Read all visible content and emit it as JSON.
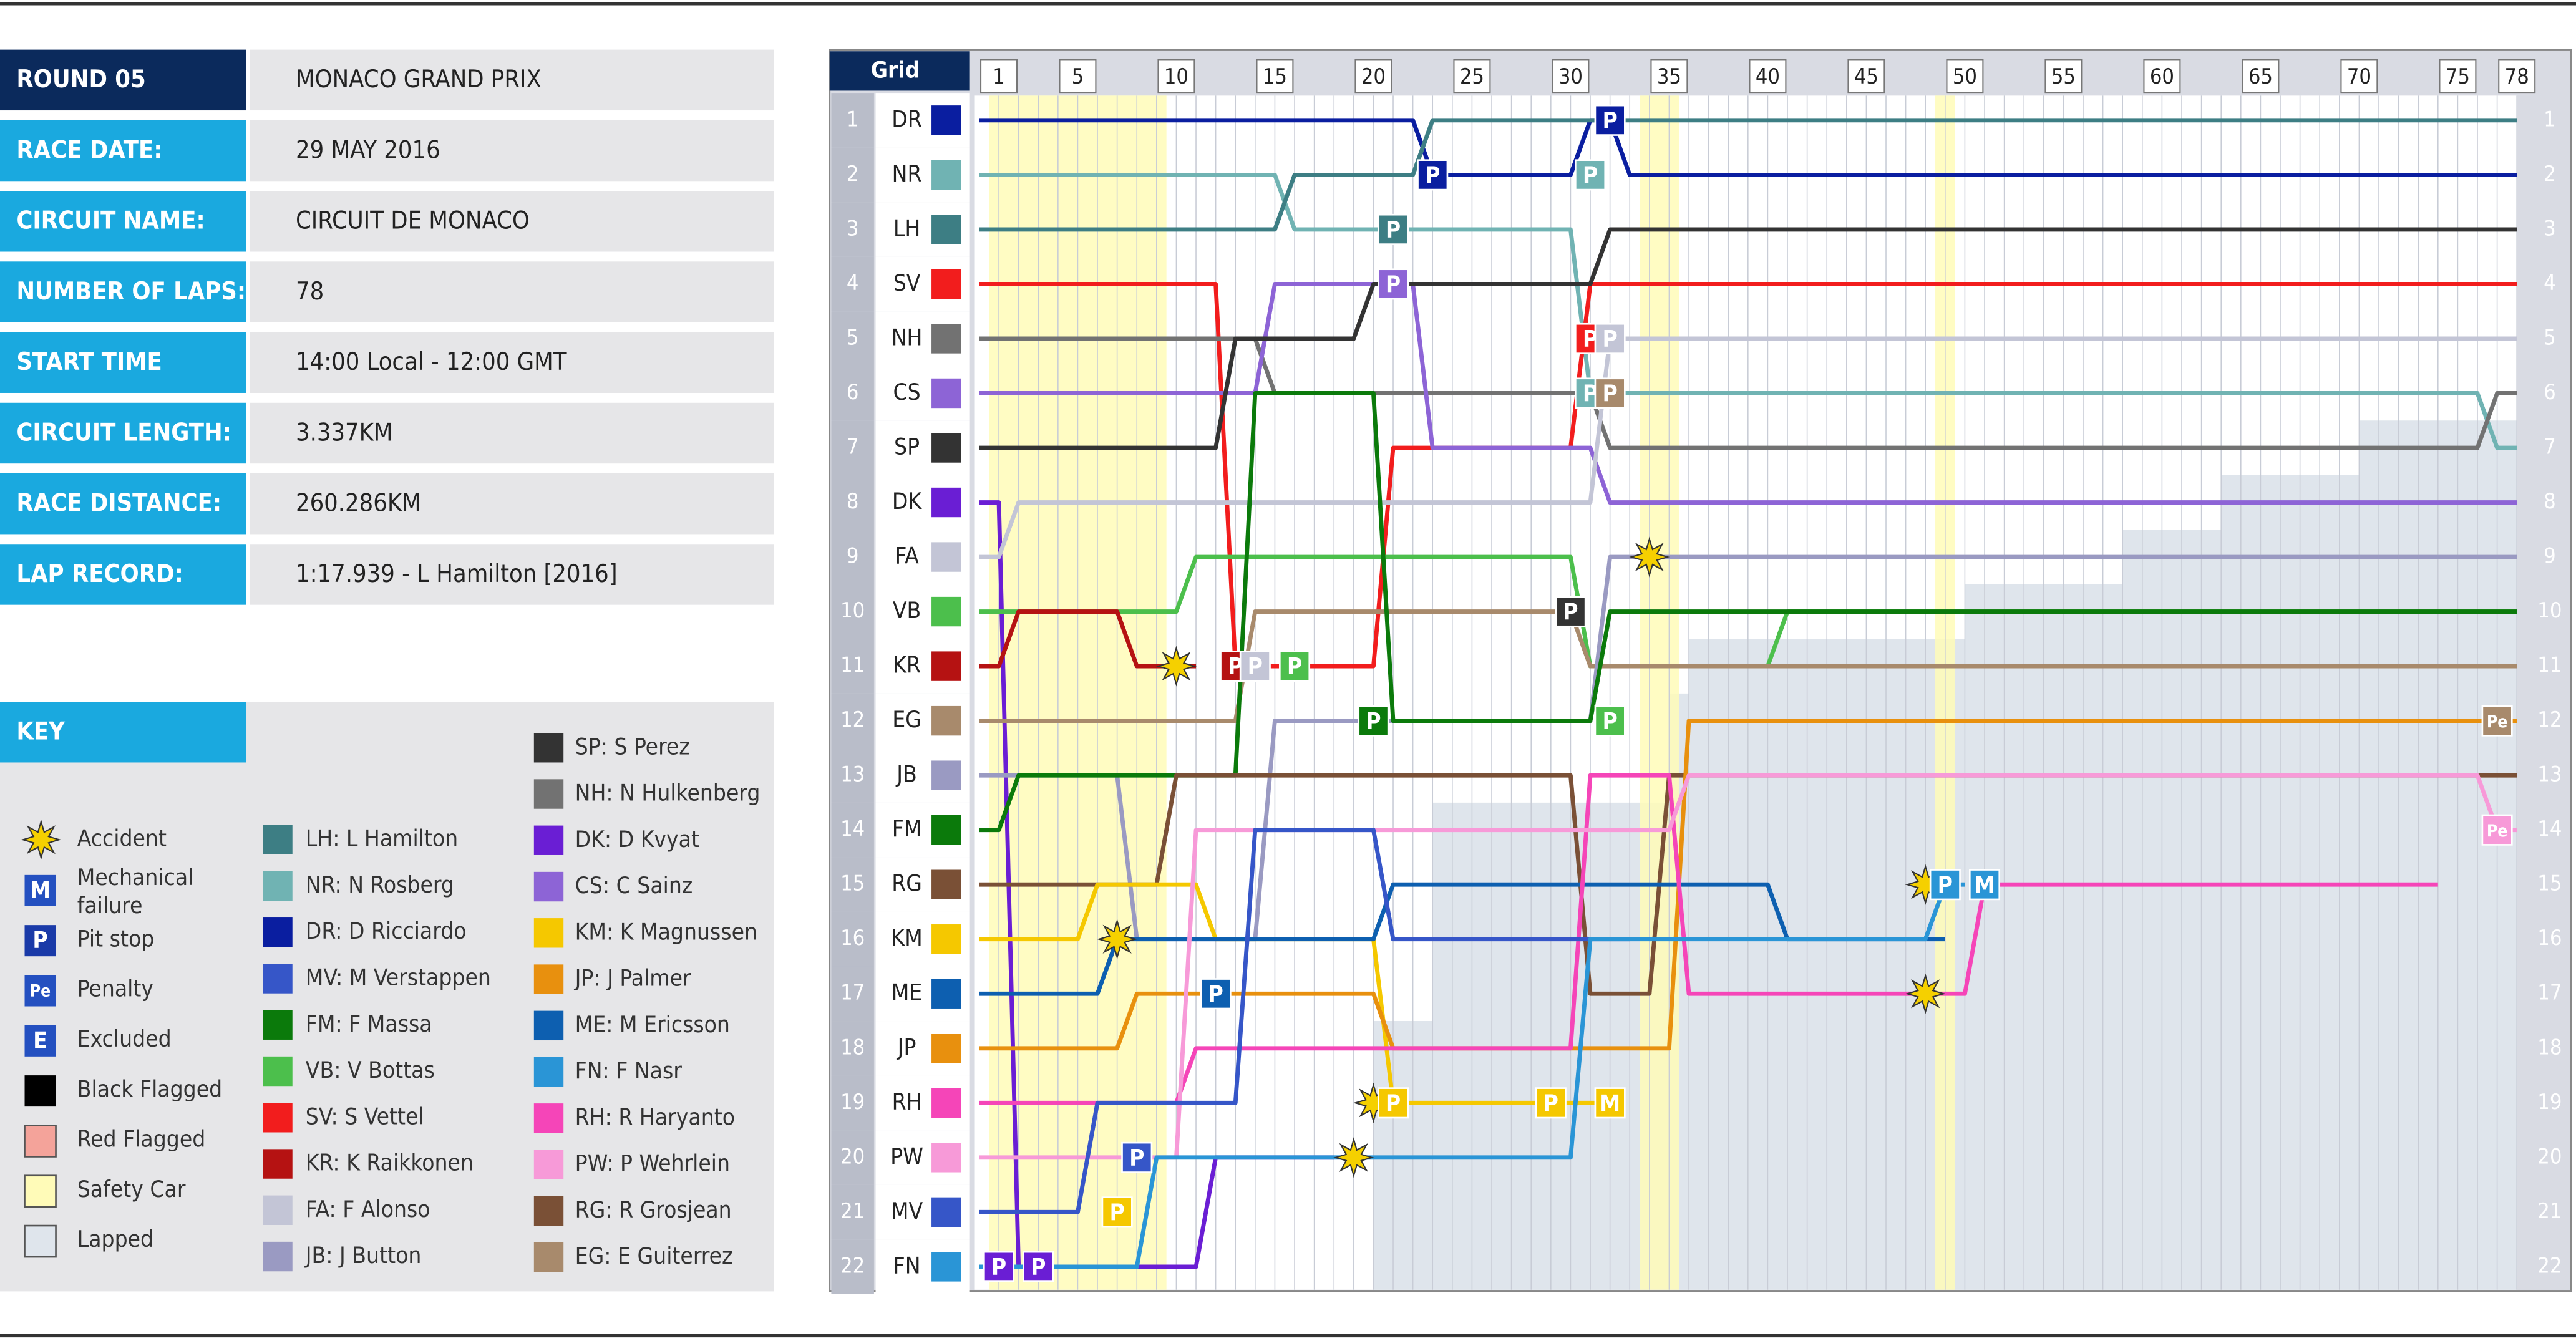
{
  "info": {
    "rows": [
      {
        "label": "ROUND 05",
        "value": "MONACO GRAND PRIX"
      },
      {
        "label": "RACE DATE:",
        "value": "29 MAY 2016"
      },
      {
        "label": "CIRCUIT NAME:",
        "value": "CIRCUIT DE MONACO"
      },
      {
        "label": "NUMBER OF LAPS:",
        "value": "78"
      },
      {
        "label": "START TIME",
        "value": "14:00 Local - 12:00 GMT"
      },
      {
        "label": "CIRCUIT LENGTH:",
        "value": "3.337KM"
      },
      {
        "label": "RACE DISTANCE:",
        "value": "260.286KM"
      },
      {
        "label": "LAP RECORD:",
        "value": "1:17.939 - L Hamilton [2016]"
      }
    ]
  },
  "key": {
    "title": "KEY",
    "symbols": [
      {
        "icon": "",
        "label": "Accident"
      },
      {
        "icon": "M",
        "label": "Mechanical failure"
      },
      {
        "icon": "P",
        "label": "Pit stop"
      },
      {
        "icon": "Pe",
        "label": "Penalty"
      },
      {
        "icon": "E",
        "label": "Excluded"
      },
      {
        "icon": "",
        "label": "Black Flagged"
      },
      {
        "icon": "",
        "label": "Red Flagged"
      },
      {
        "icon": "",
        "label": "Safety Car"
      },
      {
        "icon": "",
        "label": "Lapped"
      }
    ],
    "drivers_a": [
      "LH: L Hamilton",
      "NR: N Rosberg",
      "DR: D Ricciardo",
      "MV: M Verstappen",
      "FM: F Massa",
      "VB: V Bottas",
      "SV: S Vettel",
      "KR: K Raikkonen",
      "FA: F Alonso",
      "JB: J Button"
    ],
    "drivers_b": [
      "SP: S Perez",
      "NH: N Hulkenberg",
      "DK: D Kvyat",
      "CS: C Sainz",
      "KM: K Magnussen",
      "JP: J Palmer",
      "ME: M Ericsson",
      "FN: F Nasr",
      "RH: R Haryanto",
      "PW: P Wehrlein",
      "RG: R Grosjean",
      "EG: E Guiterrez"
    ]
  },
  "chart_data": {
    "type": "lap-chart",
    "grid_label": "Grid",
    "xlim": [
      0,
      78
    ],
    "xticks": [
      1,
      5,
      10,
      15,
      20,
      25,
      30,
      35,
      40,
      45,
      50,
      55,
      60,
      65,
      70,
      75,
      78
    ],
    "positions": [
      1,
      2,
      3,
      4,
      5,
      6,
      7,
      8,
      9,
      10,
      11,
      12,
      13,
      14,
      15,
      16,
      17,
      18,
      19,
      20,
      21,
      22
    ],
    "safety_car": [
      [
        1,
        9
      ],
      [
        34,
        35
      ],
      [
        49,
        49
      ]
    ],
    "lapped": {
      "laps": [
        20,
        23,
        35,
        36,
        50,
        58,
        63,
        70,
        75,
        78
      ],
      "positions": [
        19,
        18,
        14,
        12,
        11,
        10,
        9,
        8,
        7,
        7
      ]
    },
    "series": [
      {
        "name": "DR",
        "color": "#0a1ea0",
        "laps": [
          0,
          22,
          23,
          30,
          31,
          32,
          33,
          78
        ],
        "positions": [
          1,
          1,
          2,
          2,
          1,
          1,
          2,
          2
        ]
      },
      {
        "name": "NR",
        "color": "#70b3b3",
        "laps": [
          0,
          15,
          16,
          30,
          31,
          76,
          77,
          78
        ],
        "positions": [
          2,
          2,
          3,
          3,
          6,
          6,
          7,
          7
        ]
      },
      {
        "name": "LH",
        "color": "#3d7e84",
        "laps": [
          0,
          15,
          16,
          22,
          23,
          78
        ],
        "positions": [
          3,
          3,
          2,
          2,
          1,
          1
        ]
      },
      {
        "name": "SV",
        "color": "#f21d1d",
        "laps": [
          0,
          12,
          13,
          20,
          21,
          30,
          31,
          78
        ],
        "positions": [
          4,
          4,
          11,
          11,
          7,
          7,
          4,
          4
        ]
      },
      {
        "name": "NH",
        "color": "#727272",
        "laps": [
          0,
          14,
          15,
          31,
          32,
          76,
          77,
          78
        ],
        "positions": [
          5,
          5,
          6,
          6,
          7,
          7,
          6,
          6
        ]
      },
      {
        "name": "CS",
        "color": "#8d64d6",
        "laps": [
          0,
          14,
          15,
          22,
          23,
          31,
          32,
          78
        ],
        "positions": [
          6,
          6,
          4,
          4,
          7,
          7,
          8,
          8
        ]
      },
      {
        "name": "SP",
        "color": "#333333",
        "laps": [
          0,
          12,
          13,
          19,
          20,
          31,
          32,
          78
        ],
        "positions": [
          7,
          7,
          5,
          5,
          4,
          4,
          3,
          3
        ]
      },
      {
        "name": "DK",
        "color": "#6a1ed4",
        "laps": [
          0,
          1,
          2,
          11,
          12,
          18
        ],
        "positions": [
          8,
          8,
          22,
          22,
          20,
          20
        ]
      },
      {
        "name": "FA",
        "color": "#c3c5d6",
        "laps": [
          0,
          1,
          2,
          31,
          32,
          78
        ],
        "positions": [
          9,
          9,
          8,
          8,
          5,
          5
        ]
      },
      {
        "name": "VB",
        "color": "#4cbf4c",
        "laps": [
          0,
          10,
          11,
          30,
          31,
          40,
          41,
          78
        ],
        "positions": [
          10,
          10,
          9,
          9,
          11,
          11,
          10,
          10
        ]
      },
      {
        "name": "KR",
        "color": "#b51212",
        "laps": [
          0,
          1,
          2,
          7,
          8,
          11
        ],
        "positions": [
          11,
          11,
          10,
          10,
          11,
          11
        ]
      },
      {
        "name": "EG",
        "color": "#a88a6c",
        "laps": [
          0,
          13,
          14,
          30,
          31,
          78
        ],
        "positions": [
          12,
          12,
          10,
          10,
          11,
          11
        ]
      },
      {
        "name": "JB",
        "color": "#9a9ac2",
        "laps": [
          0,
          7,
          8,
          14,
          15,
          31,
          32,
          78
        ],
        "positions": [
          13,
          13,
          16,
          16,
          12,
          12,
          9,
          9
        ]
      },
      {
        "name": "FM",
        "color": "#0b7a0b",
        "laps": [
          0,
          1,
          2,
          13,
          14,
          20,
          21,
          31,
          32,
          78
        ],
        "positions": [
          14,
          14,
          13,
          13,
          6,
          6,
          12,
          12,
          10,
          10
        ]
      },
      {
        "name": "RG",
        "color": "#7a5036",
        "laps": [
          0,
          9,
          10,
          30,
          31,
          34,
          35,
          78
        ],
        "positions": [
          15,
          15,
          13,
          13,
          17,
          17,
          13,
          13
        ]
      },
      {
        "name": "KM",
        "color": "#f5c800",
        "laps": [
          0,
          5,
          6,
          11,
          12,
          20,
          21,
          32
        ],
        "positions": [
          16,
          16,
          15,
          15,
          16,
          16,
          19,
          19
        ]
      },
      {
        "name": "ME",
        "color": "#0d5fb0",
        "laps": [
          0,
          6,
          7,
          20,
          21,
          40,
          41,
          49
        ],
        "positions": [
          17,
          17,
          16,
          16,
          15,
          15,
          16,
          16
        ]
      },
      {
        "name": "JP",
        "color": "#e8900e",
        "laps": [
          0,
          7,
          8,
          20,
          21,
          35,
          36,
          78
        ],
        "positions": [
          18,
          18,
          17,
          17,
          18,
          18,
          12,
          12
        ]
      },
      {
        "name": "RH",
        "color": "#f545b8",
        "laps": [
          0,
          10,
          11,
          30,
          31,
          35,
          36,
          50,
          51,
          74
        ],
        "positions": [
          19,
          19,
          18,
          18,
          13,
          13,
          17,
          17,
          15,
          15
        ]
      },
      {
        "name": "PW",
        "color": "#f79ad8",
        "laps": [
          0,
          10,
          11,
          35,
          36,
          76,
          77,
          78
        ],
        "positions": [
          20,
          20,
          14,
          14,
          13,
          13,
          14,
          14
        ]
      },
      {
        "name": "MV",
        "color": "#3656c8",
        "laps": [
          0,
          5,
          6,
          13,
          14,
          20,
          21,
          33
        ],
        "positions": [
          21,
          21,
          19,
          19,
          14,
          14,
          16,
          16
        ]
      },
      {
        "name": "FN",
        "color": "#2a95d6",
        "laps": [
          0,
          8,
          9,
          30,
          31,
          48,
          49,
          50
        ],
        "positions": [
          22,
          22,
          20,
          20,
          16,
          16,
          15,
          15
        ]
      }
    ],
    "events": [
      {
        "label": "P",
        "driver": "DK",
        "lap": 1,
        "position": 22
      },
      {
        "label": "P",
        "driver": "DK",
        "lap": 3,
        "position": 22
      },
      {
        "label": "P",
        "driver": "DR",
        "lap": 23,
        "position": 2
      },
      {
        "label": "P",
        "driver": "DR",
        "lap": 32,
        "position": 1
      },
      {
        "label": "P",
        "driver": "NR",
        "lap": 31,
        "position": 2
      },
      {
        "label": "P",
        "driver": "LH",
        "lap": 21,
        "position": 3
      },
      {
        "label": "P",
        "driver": "CS",
        "lap": 21,
        "position": 4
      },
      {
        "label": "P",
        "driver": "SV",
        "lap": 31,
        "position": 5
      },
      {
        "label": "P",
        "driver": "FA",
        "lap": 32,
        "position": 5
      },
      {
        "label": "P",
        "driver": "NR",
        "lap": 31,
        "position": 6
      },
      {
        "label": "P",
        "driver": "EG",
        "lap": 32,
        "position": 6
      },
      {
        "label": "P",
        "driver": "SP",
        "lap": 30,
        "position": 10
      },
      {
        "label": "P",
        "driver": "KR",
        "lap": 13,
        "position": 11
      },
      {
        "label": "P",
        "driver": "FA",
        "lap": 14,
        "position": 11
      },
      {
        "label": "P",
        "driver": "VB",
        "lap": 16,
        "position": 11
      },
      {
        "label": "P",
        "driver": "FM",
        "lap": 20,
        "position": 12
      },
      {
        "label": "P",
        "driver": "VB",
        "lap": 32,
        "position": 12
      },
      {
        "label": "P",
        "driver": "KM",
        "lap": 7,
        "position": 21
      },
      {
        "label": "P",
        "driver": "MV",
        "lap": 8,
        "position": 20
      },
      {
        "label": "P",
        "driver": "ME",
        "lap": 12,
        "position": 17
      },
      {
        "label": "P",
        "driver": "KM",
        "lap": 21,
        "position": 19
      },
      {
        "label": "P",
        "driver": "KM",
        "lap": 29,
        "position": 19
      },
      {
        "label": "P",
        "driver": "FN",
        "lap": 49,
        "position": 15
      },
      {
        "label": "M",
        "driver": "FN",
        "lap": 51,
        "position": 15
      },
      {
        "label": "M",
        "driver": "KM",
        "lap": 32,
        "position": 19
      },
      {
        "label": "Pe",
        "driver": "EG",
        "lap": 77,
        "position": 12
      },
      {
        "label": "Pe",
        "driver": "PW",
        "lap": 77,
        "position": 14
      }
    ],
    "accidents": [
      {
        "lap": 10,
        "position": 11
      },
      {
        "lap": 7,
        "position": 16
      },
      {
        "lap": 19,
        "position": 20
      },
      {
        "lap": 20,
        "position": 19
      },
      {
        "lap": 34,
        "position": 9
      },
      {
        "lap": 48,
        "position": 15
      },
      {
        "lap": 48,
        "position": 17
      }
    ]
  }
}
